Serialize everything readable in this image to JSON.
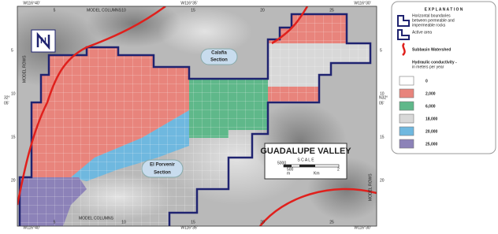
{
  "map": {
    "top_coords": [
      "W116°40'",
      "W116°35'",
      "W116°30'"
    ],
    "bottom_coords": [
      "W116°40'",
      "W116°35'",
      "W116°30'"
    ],
    "left_coord": [
      "32°",
      "05'"
    ],
    "right_coord": [
      "N32°",
      "05'"
    ],
    "top_axis": "MODEL COLUMNS",
    "bottom_axis": "MODEL COLUMNS",
    "left_axis": "MODEL ROWS",
    "right_axis": "MODEL ROWS",
    "column_ticks": [
      "5",
      "10",
      "15",
      "20",
      "25"
    ],
    "row_ticks": [
      "5",
      "10",
      "15",
      "20"
    ],
    "north": "N",
    "sections": [
      [
        "Calafia",
        "Section"
      ],
      [
        "El Porvenir",
        "Section"
      ]
    ],
    "title": "GUADALUPE VALLEY",
    "scale_title": "S C A L E",
    "scale_labels": [
      "5000",
      "m",
      "500",
      "Km",
      "2"
    ]
  },
  "explanation": {
    "title": "E X P L A N A T I O N",
    "boundary": [
      "Horizontal boundaries",
      "between permeable and",
      "impermeable rocks"
    ],
    "active": "Active area",
    "watershed": "Subbasin Watershed",
    "conductivity": [
      "Hydraulic conductivity -",
      "in meters per year"
    ],
    "classes": [
      {
        "label": "0",
        "color": "#ffffff"
      },
      {
        "label": "2,000",
        "color": "#e8847c"
      },
      {
        "label": "6,000",
        "color": "#5fb88a"
      },
      {
        "label": "18,000",
        "color": "#d8d8d8"
      },
      {
        "label": "20,000",
        "color": "#6fb8df"
      },
      {
        "label": "25,000",
        "color": "#8c82b8"
      }
    ]
  }
}
